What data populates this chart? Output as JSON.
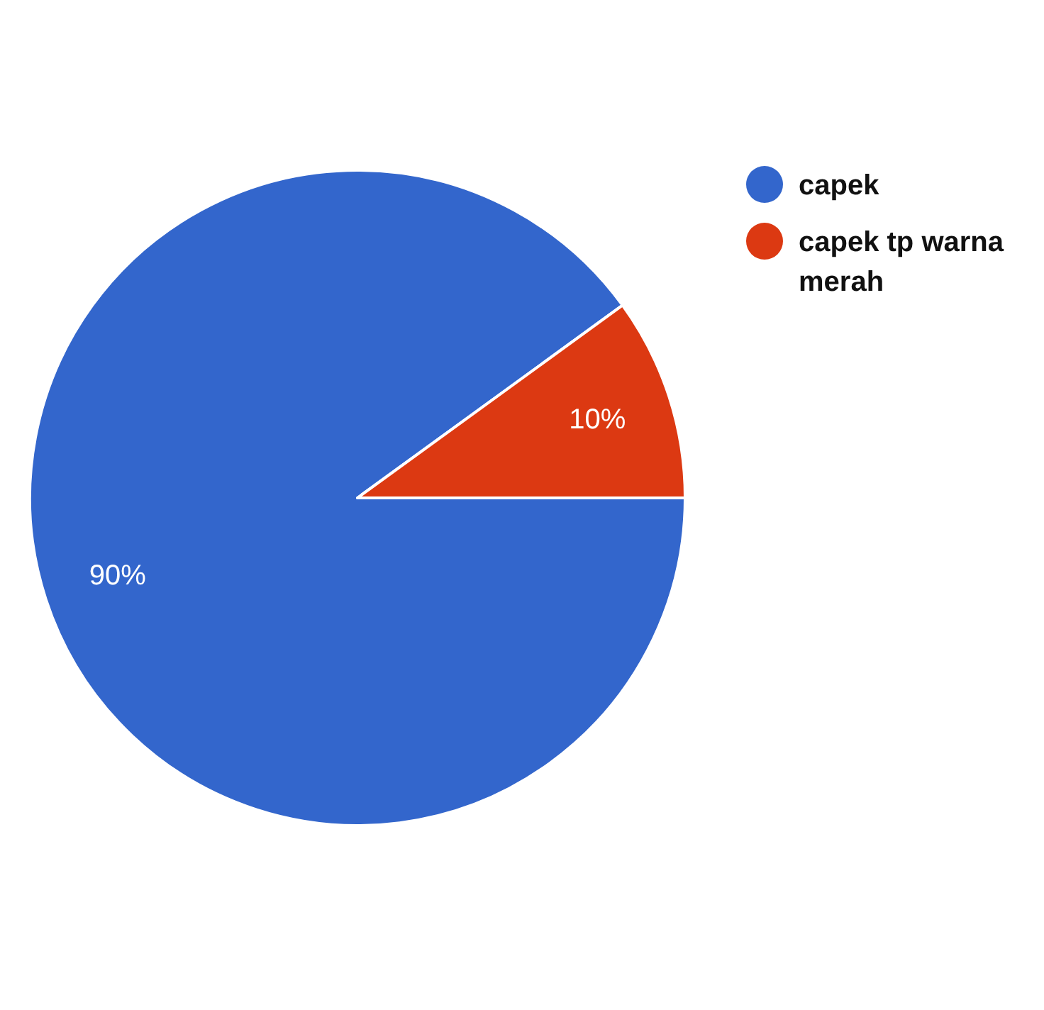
{
  "chart_data": {
    "type": "pie",
    "categories": [
      "capek",
      "capek tp warna merah"
    ],
    "values": [
      90,
      10
    ],
    "colors": [
      "#3366cc",
      "#dc3912"
    ],
    "value_labels": [
      "90%",
      "10%"
    ],
    "legend": "top right"
  }
}
